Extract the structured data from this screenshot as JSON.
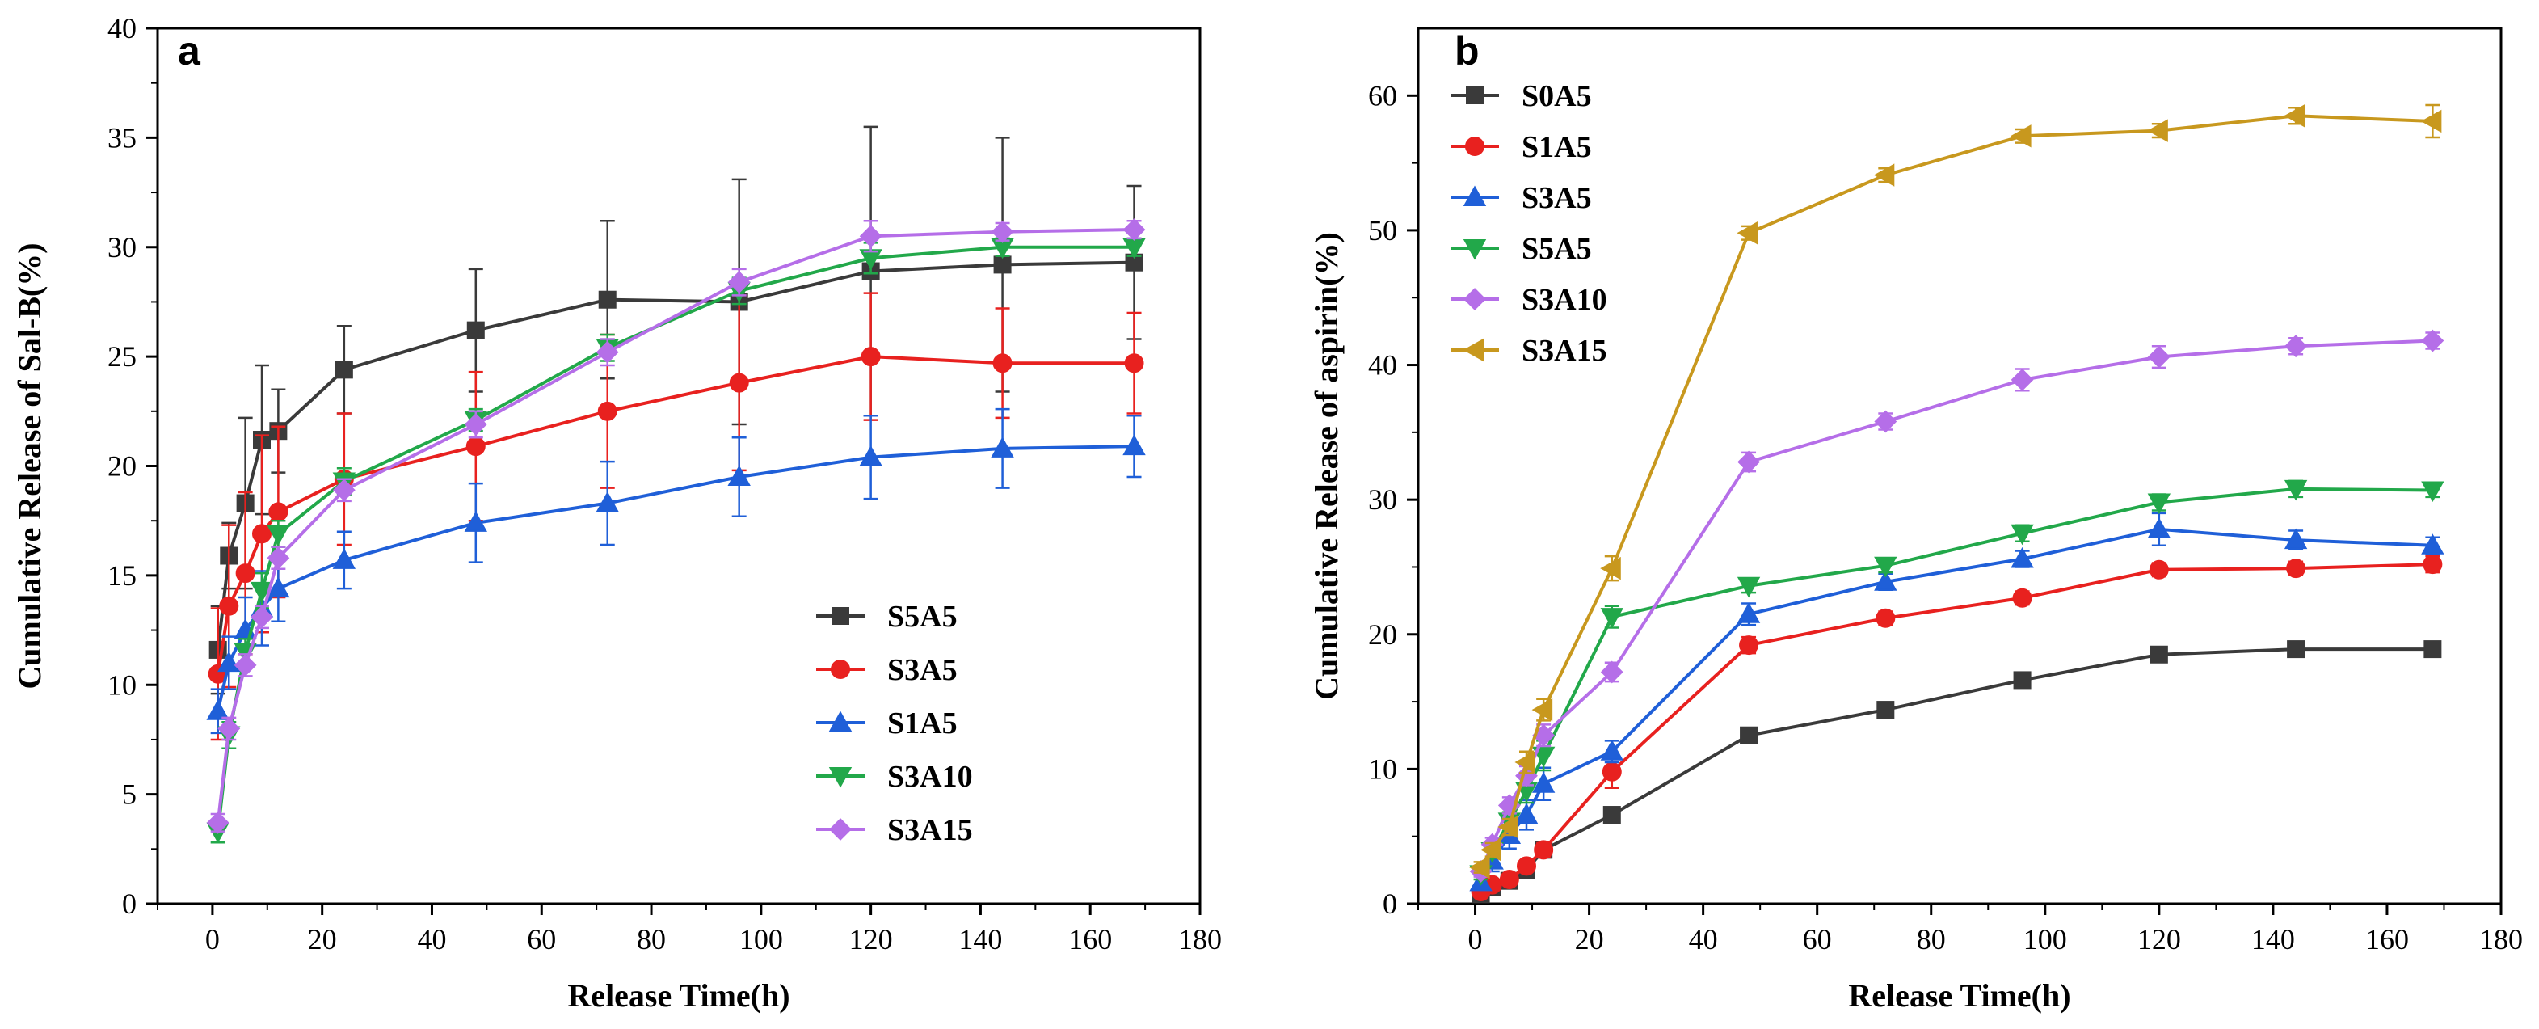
{
  "chart_data": [
    {
      "type": "line",
      "panel_label": "a",
      "xlabel": "Release Time(h)",
      "ylabel": "Cumulative Release of Sal-B(%)",
      "xlim": [
        -10,
        180
      ],
      "ylim": [
        0,
        40
      ],
      "xticks": [
        0,
        20,
        40,
        60,
        80,
        100,
        120,
        140,
        160,
        180
      ],
      "yticks": [
        0,
        5,
        10,
        15,
        20,
        25,
        30,
        35,
        40
      ],
      "legend_position": "bottom-right",
      "x": [
        1,
        3,
        6,
        9,
        12,
        24,
        48,
        72,
        96,
        120,
        144,
        168
      ],
      "series": [
        {
          "name": "S5A5",
          "color": "#3a3a3a",
          "marker": "square",
          "values": [
            11.6,
            15.9,
            18.3,
            21.2,
            21.6,
            24.4,
            26.2,
            27.6,
            27.5,
            28.9,
            29.2,
            29.3
          ],
          "errors": [
            2.0,
            1.5,
            3.9,
            3.4,
            1.9,
            2.0,
            2.8,
            3.6,
            5.6,
            6.6,
            5.8,
            3.5
          ]
        },
        {
          "name": "S3A5",
          "color": "#e8211f",
          "marker": "circle",
          "values": [
            10.5,
            13.6,
            15.1,
            16.9,
            17.9,
            19.4,
            20.9,
            22.5,
            23.8,
            25.0,
            24.7,
            24.7
          ],
          "errors": [
            3.0,
            3.7,
            3.7,
            4.5,
            3.9,
            3.0,
            3.4,
            3.5,
            4.0,
            2.9,
            2.5,
            2.3
          ]
        },
        {
          "name": "S1A5",
          "color": "#1f5fd8",
          "marker": "triangle-up",
          "values": [
            8.8,
            11.0,
            12.5,
            13.5,
            14.4,
            15.7,
            17.4,
            18.3,
            19.5,
            20.4,
            20.8,
            20.9
          ],
          "errors": [
            1.0,
            1.2,
            1.5,
            1.7,
            1.5,
            1.3,
            1.8,
            1.9,
            1.8,
            1.9,
            1.8,
            1.4
          ]
        },
        {
          "name": "S3A10",
          "color": "#22a84a",
          "marker": "triangle-down",
          "values": [
            3.3,
            7.7,
            11.5,
            14.3,
            16.9,
            19.3,
            22.1,
            25.4,
            28.0,
            29.5,
            30.0,
            30.0
          ],
          "errors": [
            0.5,
            0.6,
            0.6,
            0.8,
            0.6,
            0.6,
            0.5,
            0.6,
            0.6,
            0.7,
            0.4,
            0.4
          ]
        },
        {
          "name": "S3A15",
          "color": "#b56ee8",
          "marker": "diamond",
          "values": [
            3.7,
            8.0,
            10.9,
            13.1,
            15.8,
            18.9,
            21.9,
            25.2,
            28.4,
            30.5,
            30.7,
            30.8
          ],
          "errors": [
            0.4,
            0.5,
            0.5,
            0.5,
            0.5,
            0.5,
            0.6,
            0.6,
            0.6,
            0.7,
            0.4,
            0.4
          ]
        }
      ]
    },
    {
      "type": "line",
      "panel_label": "b",
      "xlabel": "Release Time(h)",
      "ylabel": "Cumulative Release of aspirin(%)",
      "xlim": [
        -10,
        180
      ],
      "ylim": [
        0,
        65
      ],
      "xticks": [
        0,
        20,
        40,
        60,
        80,
        100,
        120,
        140,
        160,
        180
      ],
      "yticks": [
        0,
        10,
        20,
        30,
        40,
        50,
        60
      ],
      "legend_position": "top-left",
      "x": [
        1,
        3,
        6,
        9,
        12,
        24,
        48,
        72,
        96,
        120,
        144,
        168
      ],
      "series": [
        {
          "name": "S0A5",
          "color": "#3a3a3a",
          "marker": "square",
          "values": [
            0.7,
            1.2,
            1.7,
            2.5,
            4.0,
            6.6,
            12.5,
            14.4,
            16.6,
            18.5,
            18.9,
            18.9
          ],
          "errors": [
            0.2,
            0.2,
            0.2,
            0.3,
            0.3,
            0.4,
            0.4,
            0.4,
            0.5,
            0.5,
            0.4,
            0.4
          ]
        },
        {
          "name": "S1A5",
          "color": "#e8211f",
          "marker": "circle",
          "values": [
            0.9,
            1.4,
            1.8,
            2.8,
            4.0,
            9.8,
            19.2,
            21.2,
            22.7,
            24.8,
            24.9,
            25.2
          ],
          "errors": [
            0.2,
            0.3,
            0.3,
            0.4,
            0.5,
            1.2,
            0.6,
            0.5,
            0.5,
            0.5,
            0.5,
            0.6
          ]
        },
        {
          "name": "S3A5",
          "color": "#1f5fd8",
          "marker": "triangle-up",
          "values": [
            1.6,
            3.2,
            5.1,
            6.6,
            8.9,
            11.3,
            21.5,
            23.9,
            25.6,
            27.8,
            27.0,
            26.6
          ],
          "errors": [
            0.5,
            0.8,
            1.0,
            1.1,
            1.2,
            0.8,
            0.8,
            0.6,
            0.6,
            1.2,
            0.7,
            0.6
          ]
        },
        {
          "name": "S5A5",
          "color": "#22a84a",
          "marker": "triangle-down",
          "values": [
            2.2,
            3.9,
            6.1,
            8.4,
            11.0,
            21.3,
            23.6,
            25.1,
            27.5,
            29.8,
            30.8,
            30.7
          ],
          "errors": [
            0.4,
            0.5,
            0.7,
            0.9,
            1.1,
            0.8,
            0.5,
            0.5,
            0.6,
            0.6,
            0.6,
            0.5
          ]
        },
        {
          "name": "S3A10",
          "color": "#b56ee8",
          "marker": "diamond",
          "values": [
            2.4,
            4.4,
            7.3,
            9.5,
            12.5,
            17.2,
            32.8,
            35.8,
            38.9,
            40.6,
            41.4,
            41.8
          ],
          "errors": [
            0.4,
            0.5,
            0.6,
            0.7,
            0.8,
            0.7,
            0.7,
            0.6,
            0.8,
            0.8,
            0.6,
            0.6
          ]
        },
        {
          "name": "S3A15",
          "color": "#c8981e",
          "marker": "triangle-left",
          "values": [
            2.7,
            4.0,
            5.7,
            10.5,
            14.4,
            24.9,
            49.8,
            54.1,
            57.0,
            57.4,
            58.5,
            58.1
          ],
          "errors": [
            0.4,
            0.5,
            0.6,
            0.8,
            0.8,
            0.9,
            0.5,
            0.5,
            0.5,
            0.5,
            0.6,
            1.2
          ]
        }
      ]
    }
  ]
}
